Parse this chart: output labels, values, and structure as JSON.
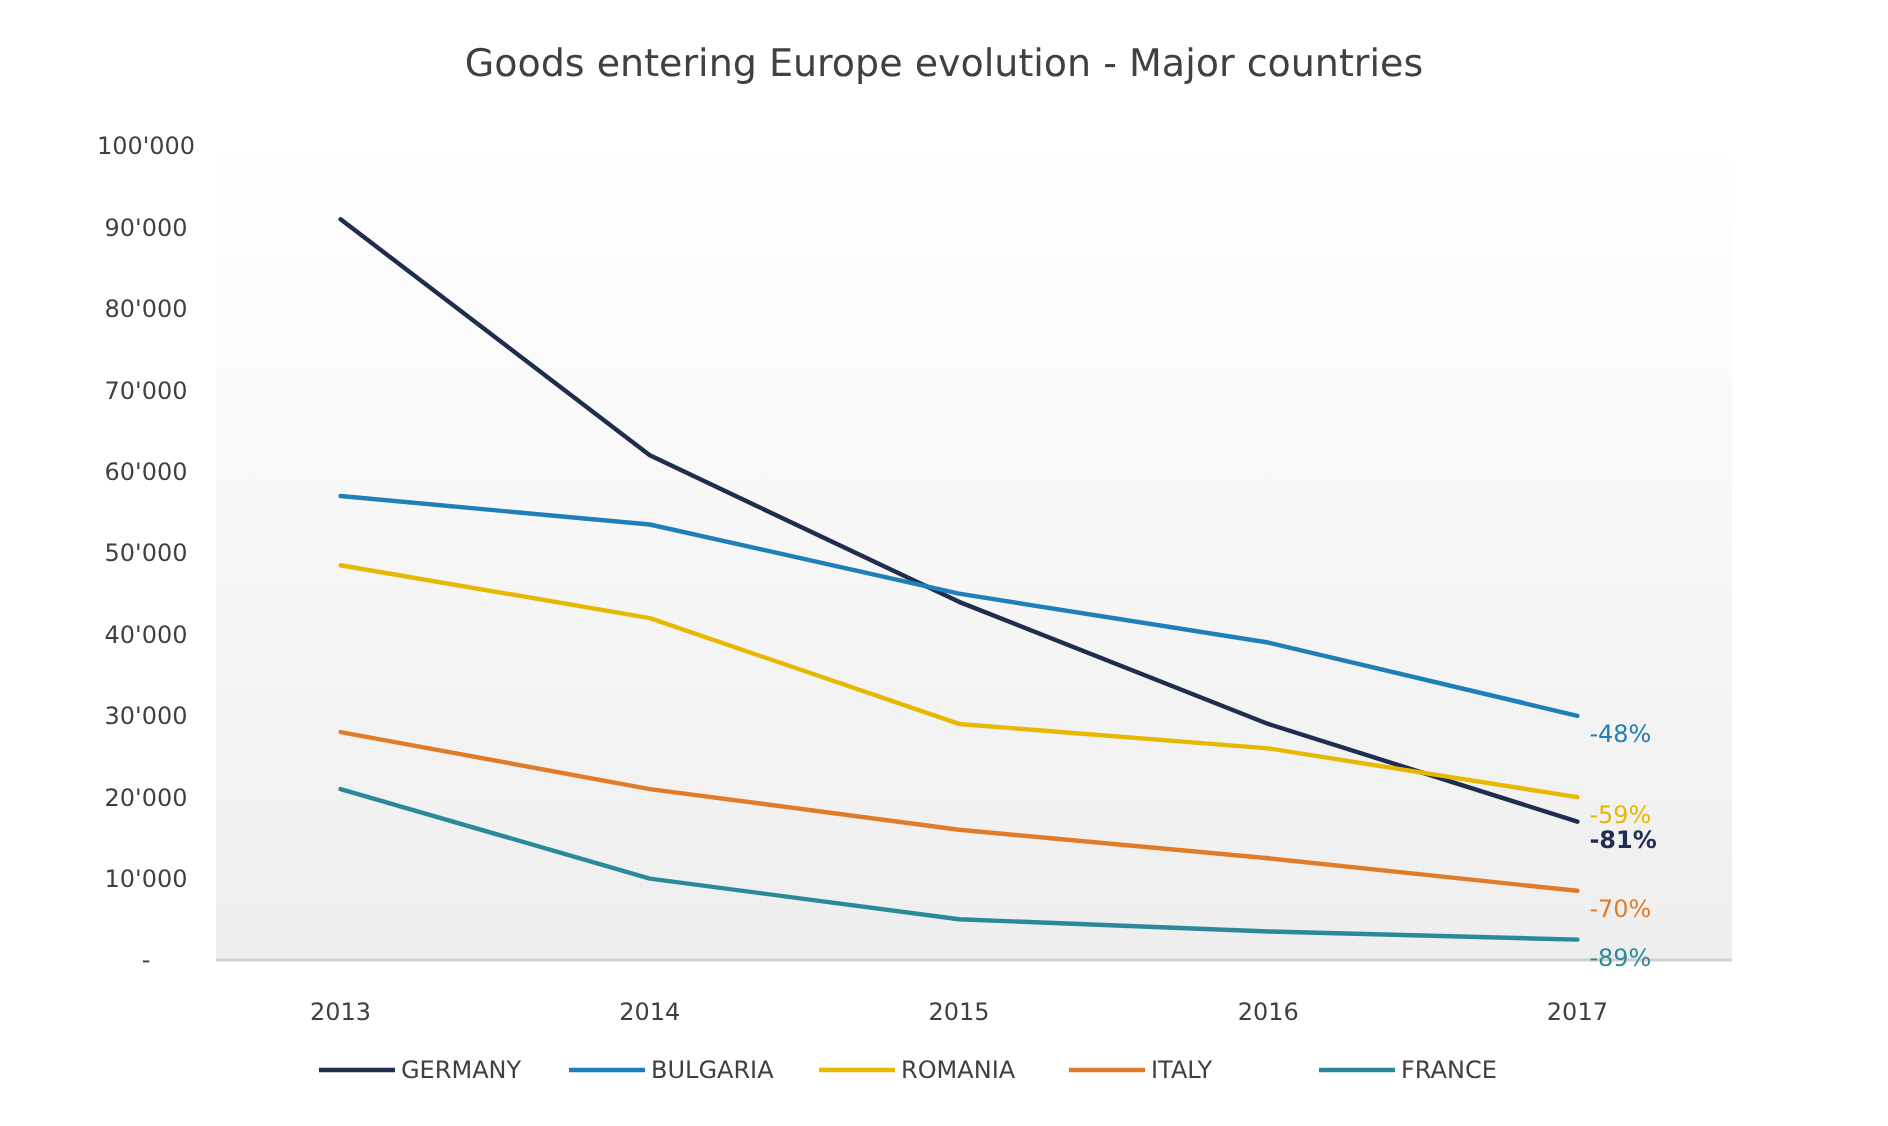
{
  "chart_data": {
    "type": "line",
    "title": "Goods entering Europe evolution - Major countries",
    "categories": [
      "2013",
      "2014",
      "2015",
      "2016",
      "2017"
    ],
    "series": [
      {
        "name": "GERMANY",
        "color": "#1f2d4e",
        "values": [
          91000,
          62000,
          44000,
          29000,
          17000
        ]
      },
      {
        "name": "BULGARIA",
        "color": "#1f7fb8",
        "values": [
          57000,
          53500,
          45000,
          39000,
          30000
        ]
      },
      {
        "name": "ROMANIA",
        "color": "#e6b800",
        "values": [
          48500,
          42000,
          29000,
          26000,
          20000
        ]
      },
      {
        "name": "ITALY",
        "color": "#e07b2a",
        "values": [
          28000,
          21000,
          16000,
          12500,
          8500
        ]
      },
      {
        "name": "FRANCE",
        "color": "#2a8a9a",
        "values": [
          21000,
          10000,
          5000,
          3500,
          2500
        ]
      }
    ],
    "annotations": [
      {
        "text": "-81%",
        "x": "2017",
        "y": 17000
      },
      {
        "text": "-48%",
        "x": "2017",
        "y": 30000
      },
      {
        "text": "-59%",
        "x": "2017",
        "y": 20000
      },
      {
        "text": "-70%",
        "x": "2017",
        "y": 8500
      },
      {
        "text": "-89%",
        "x": "2017",
        "y": 2500
      }
    ],
    "ylim": [
      0,
      100000
    ],
    "yticks": [
      {
        "value": 0,
        "label": "-"
      },
      {
        "value": 10000,
        "label": "10'000"
      },
      {
        "value": 20000,
        "label": "20'000"
      },
      {
        "value": 30000,
        "label": "30'000"
      },
      {
        "value": 40000,
        "label": "40'000"
      },
      {
        "value": 50000,
        "label": "50'000"
      },
      {
        "value": 60000,
        "label": "60'000"
      },
      {
        "value": 70000,
        "label": "70'000"
      },
      {
        "value": 80000,
        "label": "80'000"
      },
      {
        "value": 90000,
        "label": "90'000"
      },
      {
        "value": 100000,
        "label": "100'000"
      }
    ],
    "grid": false,
    "legend": "bottom",
    "marker": "none",
    "line_style": "solid"
  }
}
